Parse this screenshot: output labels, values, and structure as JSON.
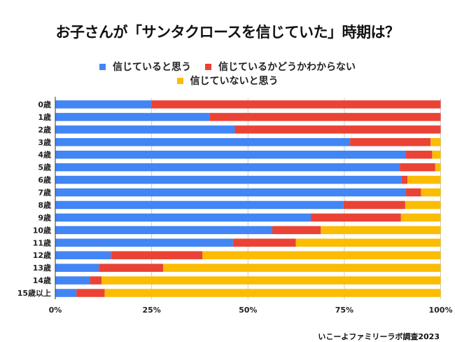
{
  "chart_data": {
    "type": "bar",
    "orientation": "horizontal",
    "stacked": "percent",
    "title": "お子さんが「サンタクロースを信じていた」時期は？",
    "categories": [
      "0歳",
      "1歳",
      "2歳",
      "3歳",
      "4歳",
      "5歳",
      "6歳",
      "7歳",
      "8歳",
      "9歳",
      "10歳",
      "11歳",
      "12歳",
      "13歳",
      "14歳",
      "15歳以上"
    ],
    "series": [
      {
        "name": "信じていると思う",
        "color": "#4285F4",
        "values": [
          25.0,
          40.0,
          46.6,
          76.5,
          91.0,
          89.4,
          89.9,
          91.0,
          74.8,
          66.3,
          56.3,
          46.1,
          14.4,
          11.3,
          9.0,
          5.5
        ]
      },
      {
        "name": "信じているかどうかわからない",
        "color": "#EA4335",
        "values": [
          75.0,
          60.0,
          53.4,
          20.9,
          6.8,
          9.2,
          1.5,
          3.9,
          16.0,
          23.4,
          12.6,
          16.3,
          23.8,
          16.7,
          3.0,
          7.3
        ]
      },
      {
        "name": "信じていないと思う",
        "color": "#FBBC04",
        "values": [
          0.0,
          0.0,
          0.0,
          2.6,
          2.2,
          1.4,
          8.6,
          5.1,
          9.2,
          10.3,
          31.1,
          37.6,
          61.8,
          72.0,
          88.0,
          87.2
        ]
      }
    ],
    "xlabel": "",
    "ylabel": "",
    "xlim": [
      0,
      100
    ],
    "x_ticks": [
      "0%",
      "25%",
      "50%",
      "75%",
      "100%"
    ],
    "x_tick_values": [
      0,
      25,
      50,
      75,
      100
    ],
    "grid": true,
    "legend_position": "top-center"
  },
  "legend": {
    "row1": [
      {
        "label": "信じていると思う",
        "color": "#4285F4"
      },
      {
        "label": "信じているかどうかわからない",
        "color": "#EA4335"
      }
    ],
    "row2": [
      {
        "label": "信じていないと思う",
        "color": "#FBBC04"
      }
    ]
  },
  "footer": "いこーよファミリーラボ調査2023"
}
